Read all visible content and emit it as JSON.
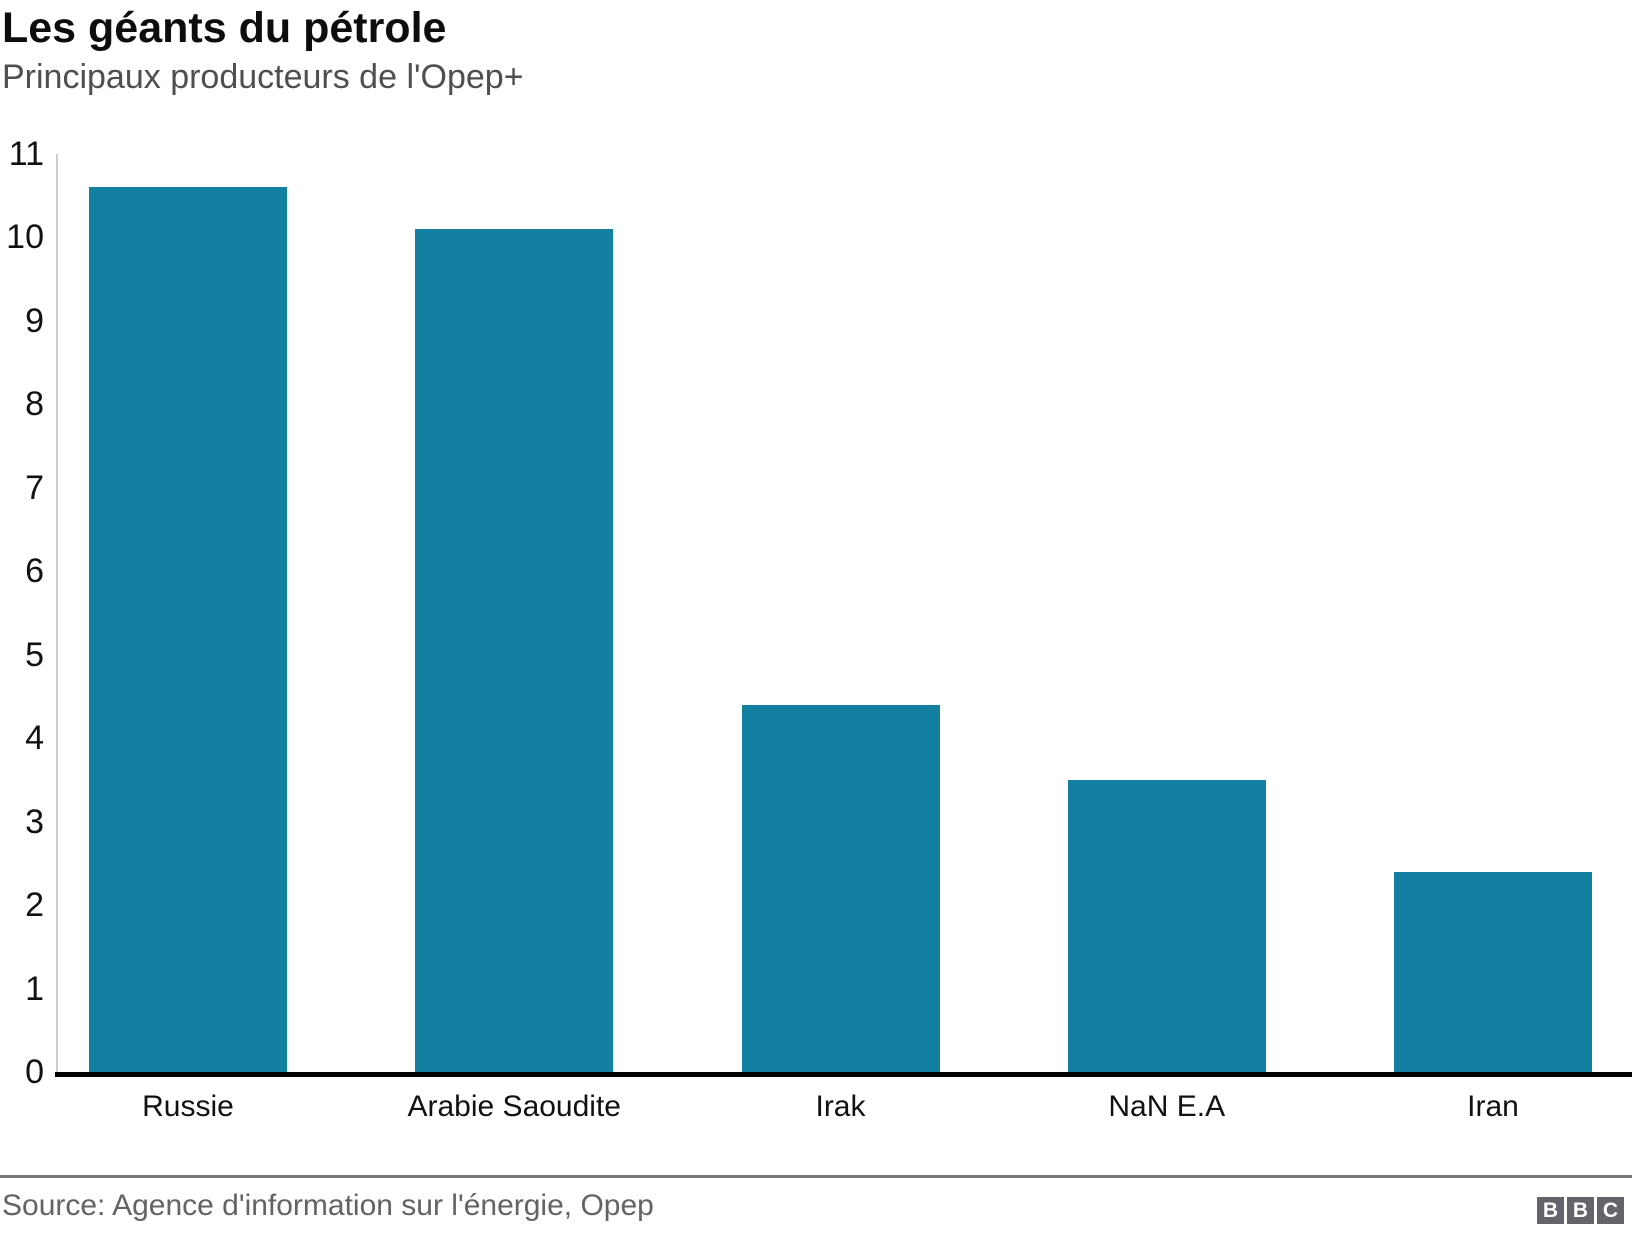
{
  "chart_data": {
    "type": "bar",
    "title": "Les géants du pétrole",
    "subtitle": "Principaux producteurs de l'Opep+",
    "categories": [
      "Russie",
      "Arabie Saoudite",
      "Irak",
      "NaN E.A",
      "Iran"
    ],
    "values": [
      10.6,
      10.1,
      4.4,
      3.5,
      2.4
    ],
    "ylim": [
      0,
      11
    ],
    "y_ticks": [
      0,
      1,
      2,
      3,
      4,
      5,
      6,
      7,
      8,
      9,
      10,
      11
    ],
    "xlabel": "",
    "ylabel": "",
    "grid": false,
    "legend_position": "none",
    "bar_color": "#1380A1",
    "axis_line_color": "#cccccc",
    "baseline_color": "#000000"
  },
  "footer": {
    "source": "Source: Agence d'information sur l'énergie, Opep",
    "logo_letters": [
      "B",
      "B",
      "C"
    ],
    "logo_block_color": "#64646b",
    "logo_letter_color": "#ffffff"
  }
}
